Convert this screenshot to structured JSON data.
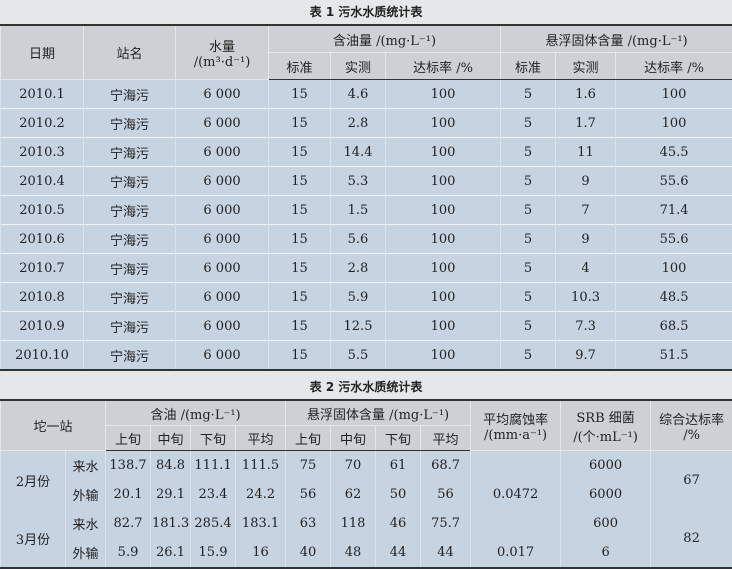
{
  "table1": {
    "caption": "表 1  污水水质统计表",
    "headers": {
      "date": "日期",
      "station": "站名",
      "water": "水量",
      "water_unit": "/(m³·d⁻¹)",
      "oil": "含油量 /(mg·L⁻¹)",
      "ss": "悬浮固体含量 /(mg·L⁻¹)",
      "std": "标准",
      "measured": "实测",
      "rate": "达标率 /%"
    },
    "rows": [
      [
        "2010.1",
        "宁海污",
        "6 000",
        "15",
        "4.6",
        "100",
        "5",
        "1.6",
        "100"
      ],
      [
        "2010.2",
        "宁海污",
        "6 000",
        "15",
        "2.8",
        "100",
        "5",
        "1.7",
        "100"
      ],
      [
        "2010.3",
        "宁海污",
        "6 000",
        "15",
        "14.4",
        "100",
        "5",
        "11",
        "45.5"
      ],
      [
        "2010.4",
        "宁海污",
        "6 000",
        "15",
        "5.3",
        "100",
        "5",
        "9",
        "55.6"
      ],
      [
        "2010.5",
        "宁海污",
        "6 000",
        "15",
        "1.5",
        "100",
        "5",
        "7",
        "71.4"
      ],
      [
        "2010.6",
        "宁海污",
        "6 000",
        "15",
        "5.6",
        "100",
        "5",
        "9",
        "55.6"
      ],
      [
        "2010.7",
        "宁海污",
        "6 000",
        "15",
        "2.8",
        "100",
        "5",
        "4",
        "100"
      ],
      [
        "2010.8",
        "宁海污",
        "6 000",
        "15",
        "5.9",
        "100",
        "5",
        "10.3",
        "48.5"
      ],
      [
        "2010.9",
        "宁海污",
        "6 000",
        "15",
        "12.5",
        "100",
        "5",
        "7.3",
        "68.5"
      ],
      [
        "2010.10",
        "宁海污",
        "6 000",
        "15",
        "5.5",
        "100",
        "5",
        "9.7",
        "51.5"
      ]
    ]
  },
  "table2": {
    "caption": "表 2  污水水质统计表",
    "headers": {
      "station": "坨一站",
      "oil": "含油 /(mg·L⁻¹)",
      "ss": "悬浮固体含量 /(mg·L⁻¹)",
      "corr": "平均腐蚀率",
      "corr_unit": "/(mm·a⁻¹)",
      "srb": "SRB 细菌",
      "srb_unit": "/(个·mL⁻¹)",
      "total": "综合达标率",
      "total_unit": "/%",
      "sub": [
        "上旬",
        "中旬",
        "下旬",
        "平均",
        "上旬",
        "中旬",
        "下旬",
        "平均"
      ]
    },
    "months": [
      {
        "month": "2月份",
        "corr": "0.0472",
        "total": "67",
        "rows": [
          {
            "type": "来水",
            "values": [
              "138.7",
              "84.8",
              "111.1",
              "111.5",
              "75",
              "70",
              "61",
              "68.7"
            ],
            "srb": "6000"
          },
          {
            "type": "外输",
            "values": [
              "20.1",
              "29.1",
              "23.4",
              "24.2",
              "56",
              "62",
              "50",
              "56"
            ],
            "srb": "6000"
          }
        ]
      },
      {
        "month": "3月份",
        "corr": "0.017",
        "total": "82",
        "rows": [
          {
            "type": "来水",
            "values": [
              "82.7",
              "181.3",
              "285.4",
              "183.1",
              "63",
              "118",
              "46",
              "75.7"
            ],
            "srb": "600"
          },
          {
            "type": "外输",
            "values": [
              "5.9",
              "26.1",
              "15.9",
              "16",
              "40",
              "48",
              "44",
              "44"
            ],
            "srb": "6"
          }
        ]
      }
    ]
  }
}
